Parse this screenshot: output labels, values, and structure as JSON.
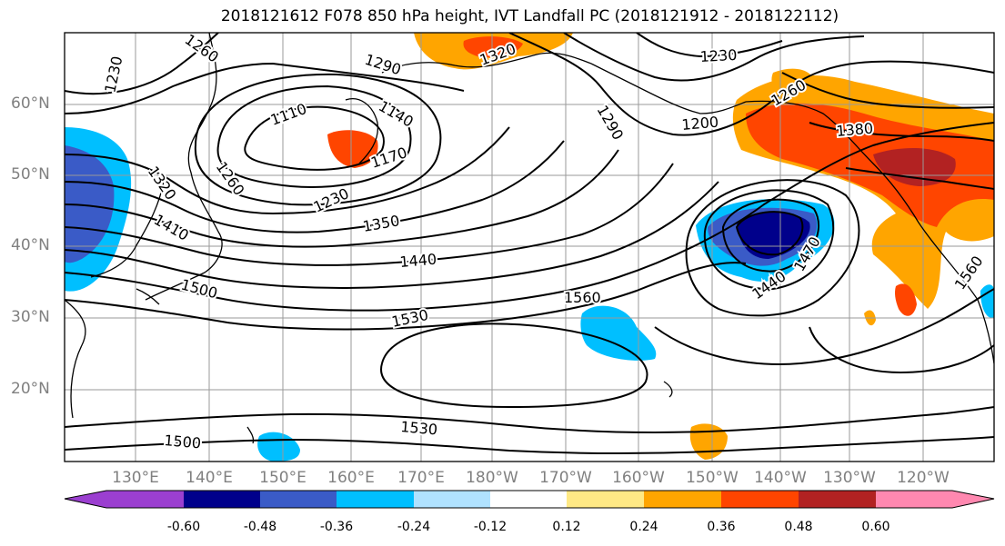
{
  "title": "2018121612 F078 850 hPa height, IVT Landfall PC (2018121912 - 2018122112)",
  "lat_labels": [
    "60°N",
    "50°N",
    "40°N",
    "30°N",
    "20°N"
  ],
  "lon_labels": [
    "130°E",
    "140°E",
    "150°E",
    "160°E",
    "170°E",
    "180°W",
    "170°W",
    "160°W",
    "150°W",
    "140°W",
    "130°W",
    "120°W"
  ],
  "contour_labels": [
    "1230",
    "1260",
    "1290",
    "1110",
    "1140",
    "1170",
    "1260",
    "1320",
    "1230",
    "1350",
    "1410",
    "1440",
    "1500",
    "1530",
    "1560",
    "1290",
    "1200",
    "1230",
    "1260",
    "1380",
    "1470",
    "1440",
    "1560",
    "1500",
    "1530",
    "1320"
  ],
  "colorbar": {
    "colors": [
      "#9b3fd0",
      "#00008b",
      "#3a5bc7",
      "#00bfff",
      "#b0e2ff",
      "#ffffff",
      "#ffe985",
      "#ffa500",
      "#ff4500",
      "#b22222",
      "#ff88b0"
    ],
    "ticks": [
      "-0.60",
      "-0.48",
      "-0.36",
      "-0.24",
      "-0.12",
      "0.12",
      "0.24",
      "0.36",
      "0.48",
      "0.60"
    ]
  },
  "legend_colors": {
    "coast": "#000000",
    "contour": "#000000",
    "grid": "#9a9a9a"
  }
}
